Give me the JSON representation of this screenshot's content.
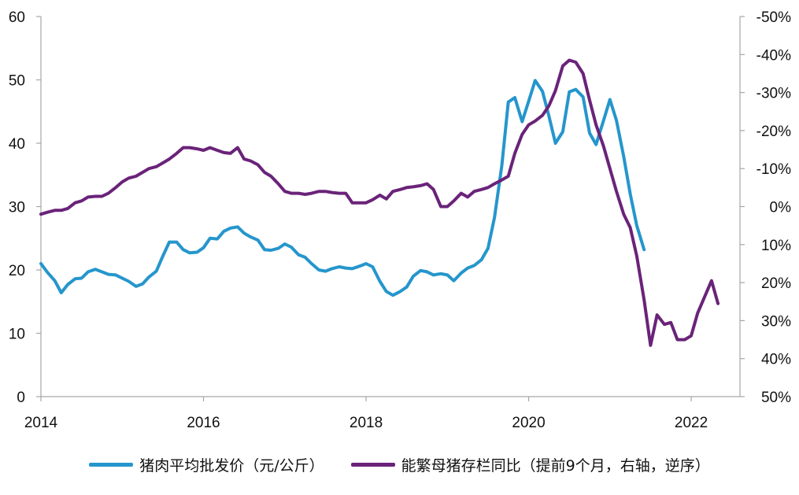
{
  "chart_data": {
    "type": "line",
    "title": "",
    "x_ticks": [
      "2014",
      "2016",
      "2018",
      "2020",
      "2022"
    ],
    "xlim": [
      2014.0,
      2022.6
    ],
    "left_axis": {
      "ylim": [
        0,
        60
      ],
      "ticks": [
        "0",
        "10",
        "20",
        "30",
        "40",
        "50",
        "60"
      ]
    },
    "right_axis": {
      "reversed": true,
      "ylim": [
        -0.5,
        0.5
      ],
      "ticks": [
        "-50%",
        "-40%",
        "-30%",
        "-20%",
        "-10%",
        "0%",
        "10%",
        "20%",
        "30%",
        "40%",
        "50%"
      ]
    },
    "grid": false,
    "legend_position": "bottom",
    "series": [
      {
        "name": "猪肉平均批发价（元/公斤）",
        "axis": "left",
        "color": "#2596cc",
        "points": [
          [
            2014.0,
            21.0
          ],
          [
            2014.08,
            19.6
          ],
          [
            2014.17,
            18.3
          ],
          [
            2014.25,
            16.4
          ],
          [
            2014.33,
            17.7
          ],
          [
            2014.42,
            18.6
          ],
          [
            2014.5,
            18.7
          ],
          [
            2014.58,
            19.7
          ],
          [
            2014.67,
            20.1
          ],
          [
            2014.75,
            19.7
          ],
          [
            2014.83,
            19.3
          ],
          [
            2014.92,
            19.2
          ],
          [
            2015.0,
            18.7
          ],
          [
            2015.08,
            18.2
          ],
          [
            2015.17,
            17.4
          ],
          [
            2015.25,
            17.8
          ],
          [
            2015.33,
            18.9
          ],
          [
            2015.42,
            19.8
          ],
          [
            2015.5,
            22.2
          ],
          [
            2015.58,
            24.4
          ],
          [
            2015.67,
            24.4
          ],
          [
            2015.75,
            23.2
          ],
          [
            2015.83,
            22.7
          ],
          [
            2015.92,
            22.8
          ],
          [
            2016.0,
            23.5
          ],
          [
            2016.08,
            25.0
          ],
          [
            2016.17,
            24.9
          ],
          [
            2016.25,
            26.1
          ],
          [
            2016.33,
            26.6
          ],
          [
            2016.42,
            26.8
          ],
          [
            2016.5,
            25.8
          ],
          [
            2016.58,
            25.2
          ],
          [
            2016.67,
            24.7
          ],
          [
            2016.75,
            23.2
          ],
          [
            2016.83,
            23.1
          ],
          [
            2016.92,
            23.4
          ],
          [
            2017.0,
            24.1
          ],
          [
            2017.08,
            23.6
          ],
          [
            2017.17,
            22.4
          ],
          [
            2017.25,
            22.0
          ],
          [
            2017.33,
            21.0
          ],
          [
            2017.42,
            20.0
          ],
          [
            2017.5,
            19.8
          ],
          [
            2017.58,
            20.2
          ],
          [
            2017.67,
            20.5
          ],
          [
            2017.75,
            20.3
          ],
          [
            2017.83,
            20.2
          ],
          [
            2017.92,
            20.6
          ],
          [
            2018.0,
            21.0
          ],
          [
            2018.08,
            20.5
          ],
          [
            2018.17,
            18.2
          ],
          [
            2018.25,
            16.6
          ],
          [
            2018.33,
            16.0
          ],
          [
            2018.42,
            16.6
          ],
          [
            2018.5,
            17.3
          ],
          [
            2018.58,
            19.0
          ],
          [
            2018.67,
            19.9
          ],
          [
            2018.75,
            19.7
          ],
          [
            2018.83,
            19.2
          ],
          [
            2018.92,
            19.4
          ],
          [
            2019.0,
            19.2
          ],
          [
            2019.08,
            18.3
          ],
          [
            2019.17,
            19.5
          ],
          [
            2019.25,
            20.3
          ],
          [
            2019.33,
            20.7
          ],
          [
            2019.42,
            21.6
          ],
          [
            2019.5,
            23.4
          ],
          [
            2019.58,
            28.3
          ],
          [
            2019.67,
            36.5
          ],
          [
            2019.75,
            46.5
          ],
          [
            2019.83,
            47.2
          ],
          [
            2019.92,
            43.4
          ],
          [
            2020.0,
            46.6
          ],
          [
            2020.08,
            49.9
          ],
          [
            2020.17,
            48.2
          ],
          [
            2020.25,
            44.3
          ],
          [
            2020.33,
            40.0
          ],
          [
            2020.42,
            41.8
          ],
          [
            2020.5,
            48.1
          ],
          [
            2020.58,
            48.5
          ],
          [
            2020.67,
            47.3
          ],
          [
            2020.75,
            41.6
          ],
          [
            2020.83,
            39.8
          ],
          [
            2020.92,
            43.5
          ],
          [
            2021.0,
            46.9
          ],
          [
            2021.08,
            43.6
          ],
          [
            2021.17,
            37.9
          ],
          [
            2021.25,
            32.0
          ],
          [
            2021.33,
            27.0
          ],
          [
            2021.42,
            23.2
          ]
        ]
      },
      {
        "name": "能繁母猪存栏同比（提前9个月，右轴，逆序）",
        "axis": "right",
        "color": "#6a2379",
        "points": [
          [
            2014.0,
            0.02
          ],
          [
            2014.08,
            0.015
          ],
          [
            2014.17,
            0.01
          ],
          [
            2014.25,
            0.01
          ],
          [
            2014.33,
            0.005
          ],
          [
            2014.42,
            -0.01
          ],
          [
            2014.5,
            -0.015
          ],
          [
            2014.58,
            -0.025
          ],
          [
            2014.67,
            -0.027
          ],
          [
            2014.75,
            -0.027
          ],
          [
            2014.83,
            -0.035
          ],
          [
            2014.92,
            -0.05
          ],
          [
            2015.0,
            -0.065
          ],
          [
            2015.08,
            -0.075
          ],
          [
            2015.17,
            -0.08
          ],
          [
            2015.25,
            -0.09
          ],
          [
            2015.33,
            -0.1
          ],
          [
            2015.42,
            -0.105
          ],
          [
            2015.5,
            -0.115
          ],
          [
            2015.58,
            -0.125
          ],
          [
            2015.67,
            -0.14
          ],
          [
            2015.75,
            -0.155
          ],
          [
            2015.83,
            -0.155
          ],
          [
            2015.92,
            -0.152
          ],
          [
            2016.0,
            -0.148
          ],
          [
            2016.08,
            -0.155
          ],
          [
            2016.17,
            -0.148
          ],
          [
            2016.25,
            -0.142
          ],
          [
            2016.33,
            -0.14
          ],
          [
            2016.42,
            -0.155
          ],
          [
            2016.5,
            -0.125
          ],
          [
            2016.58,
            -0.12
          ],
          [
            2016.67,
            -0.11
          ],
          [
            2016.75,
            -0.09
          ],
          [
            2016.83,
            -0.08
          ],
          [
            2016.92,
            -0.06
          ],
          [
            2017.0,
            -0.04
          ],
          [
            2017.08,
            -0.035
          ],
          [
            2017.17,
            -0.035
          ],
          [
            2017.25,
            -0.032
          ],
          [
            2017.33,
            -0.035
          ],
          [
            2017.42,
            -0.04
          ],
          [
            2017.5,
            -0.04
          ],
          [
            2017.58,
            -0.037
          ],
          [
            2017.67,
            -0.035
          ],
          [
            2017.75,
            -0.035
          ],
          [
            2017.83,
            -0.01
          ],
          [
            2017.92,
            -0.01
          ],
          [
            2018.0,
            -0.01
          ],
          [
            2018.08,
            -0.018
          ],
          [
            2018.17,
            -0.03
          ],
          [
            2018.25,
            -0.02
          ],
          [
            2018.33,
            -0.04
          ],
          [
            2018.42,
            -0.045
          ],
          [
            2018.5,
            -0.05
          ],
          [
            2018.58,
            -0.052
          ],
          [
            2018.67,
            -0.055
          ],
          [
            2018.75,
            -0.06
          ],
          [
            2018.83,
            -0.045
          ],
          [
            2018.92,
            0.0
          ],
          [
            2019.0,
            0.0
          ],
          [
            2019.08,
            -0.015
          ],
          [
            2019.17,
            -0.035
          ],
          [
            2019.25,
            -0.025
          ],
          [
            2019.33,
            -0.04
          ],
          [
            2019.42,
            -0.045
          ],
          [
            2019.5,
            -0.05
          ],
          [
            2019.58,
            -0.06
          ],
          [
            2019.67,
            -0.07
          ],
          [
            2019.75,
            -0.08
          ],
          [
            2019.83,
            -0.14
          ],
          [
            2019.92,
            -0.19
          ],
          [
            2020.0,
            -0.215
          ],
          [
            2020.08,
            -0.225
          ],
          [
            2020.17,
            -0.24
          ],
          [
            2020.25,
            -0.265
          ],
          [
            2020.33,
            -0.305
          ],
          [
            2020.42,
            -0.37
          ],
          [
            2020.5,
            -0.385
          ],
          [
            2020.58,
            -0.38
          ],
          [
            2020.67,
            -0.35
          ],
          [
            2020.75,
            -0.28
          ],
          [
            2020.83,
            -0.215
          ],
          [
            2020.92,
            -0.16
          ],
          [
            2021.0,
            -0.1
          ],
          [
            2021.08,
            -0.04
          ],
          [
            2021.17,
            0.02
          ],
          [
            2021.25,
            0.055
          ],
          [
            2021.33,
            0.13
          ],
          [
            2021.42,
            0.245
          ],
          [
            2021.5,
            0.365
          ],
          [
            2021.58,
            0.285
          ],
          [
            2021.67,
            0.31
          ],
          [
            2021.75,
            0.305
          ],
          [
            2021.83,
            0.35
          ],
          [
            2021.92,
            0.35
          ],
          [
            2022.0,
            0.34
          ],
          [
            2022.08,
            0.28
          ],
          [
            2022.17,
            0.235
          ],
          [
            2022.25,
            0.195
          ],
          [
            2022.33,
            0.255
          ]
        ]
      }
    ]
  }
}
